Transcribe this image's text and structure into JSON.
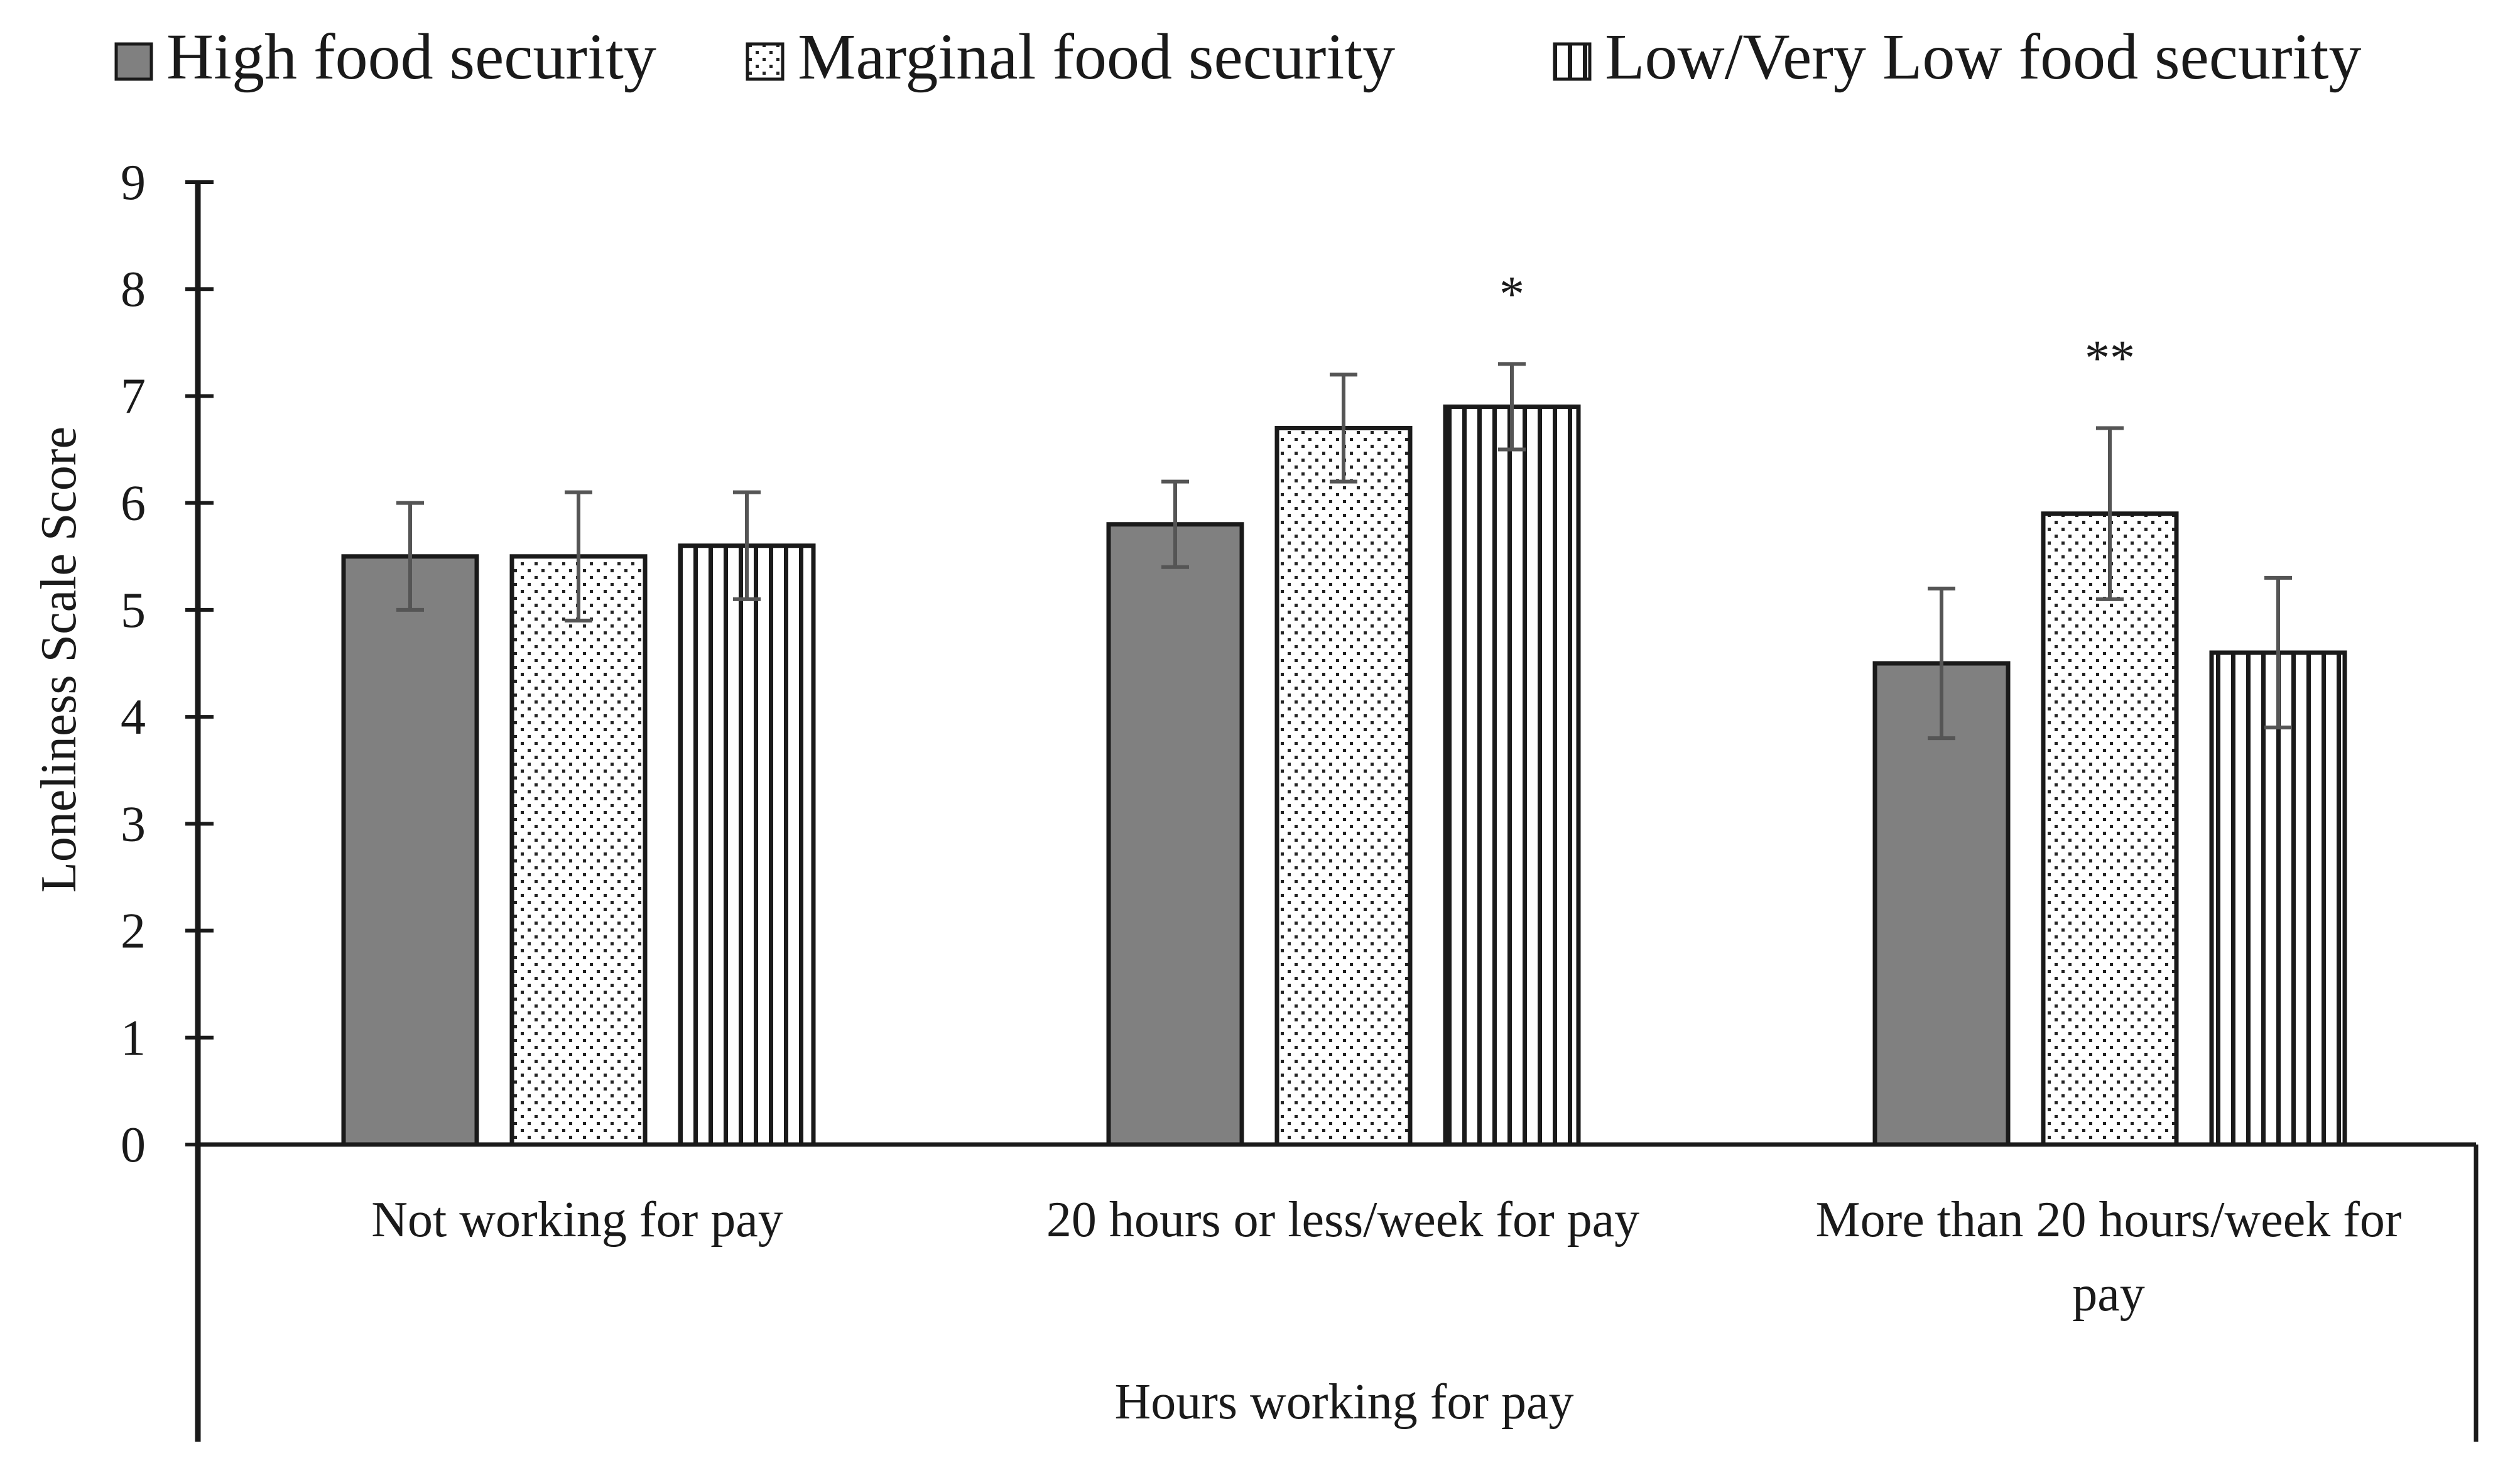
{
  "chart_data": {
    "type": "bar",
    "title": "",
    "xlabel": "Hours working for pay",
    "ylabel": "Loneliness Scale Score",
    "ylim": [
      0,
      9
    ],
    "yticks": [
      "0",
      "1",
      "2",
      "3",
      "4",
      "5",
      "6",
      "7",
      "8",
      "9"
    ],
    "categories": [
      "Not working for pay",
      "20 hours or less/week for pay",
      "More than 20 hours/week for pay"
    ],
    "series": [
      {
        "name": "High food security",
        "pattern": "solid-gray",
        "values": [
          5.5,
          5.8,
          4.5
        ],
        "err_low": [
          5.0,
          5.4,
          3.8
        ],
        "err_high": [
          6.0,
          6.2,
          5.2
        ]
      },
      {
        "name": "Marginal food security",
        "pattern": "dots",
        "values": [
          5.5,
          6.7,
          5.9
        ],
        "err_low": [
          4.9,
          6.2,
          5.1
        ],
        "err_high": [
          6.1,
          7.2,
          6.7
        ]
      },
      {
        "name": "Low/Very Low food security",
        "pattern": "vertical-stripes",
        "values": [
          5.6,
          6.9,
          4.6
        ],
        "err_low": [
          5.1,
          6.5,
          3.9
        ],
        "err_high": [
          6.1,
          7.3,
          5.3
        ]
      }
    ],
    "annotations": [
      {
        "text": "*",
        "category_index": 1,
        "series_index": 2
      },
      {
        "text": "**",
        "category_index": 2,
        "series_index": 1
      }
    ],
    "legend_position": "top",
    "grid": false
  },
  "colors": {
    "bar_fill": "#808080",
    "bar_stroke": "#1a1a1a",
    "error_bar": "#555555",
    "axis": "#1a1a1a",
    "text": "#1a1a1a",
    "background": "#ffffff"
  }
}
